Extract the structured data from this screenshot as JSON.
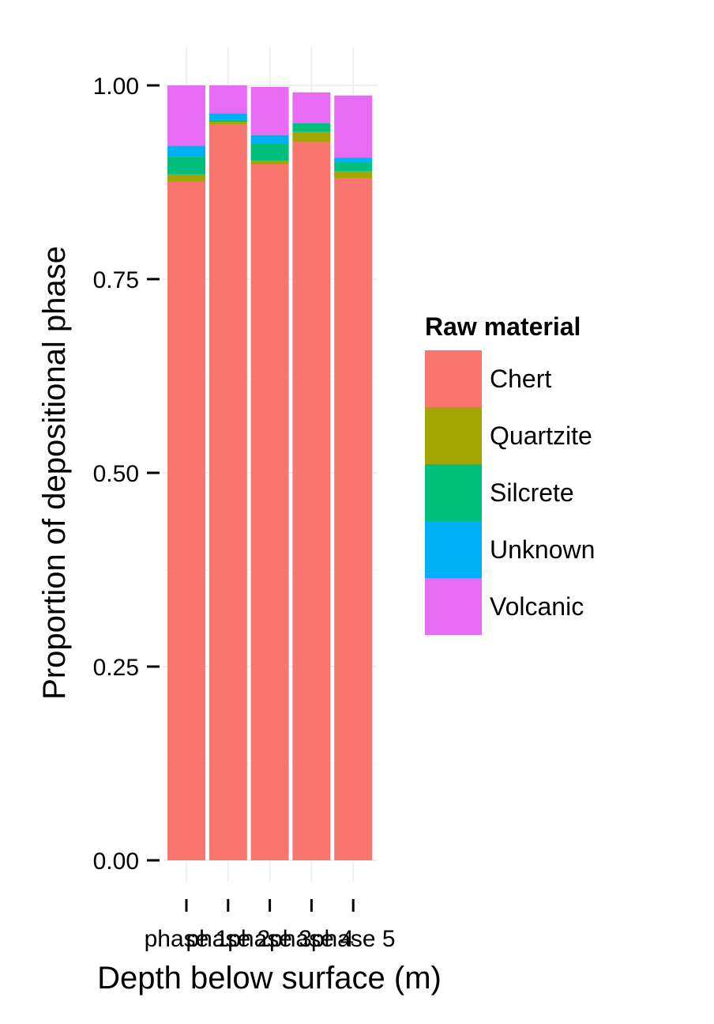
{
  "chart_data": {
    "type": "bar",
    "stacked": true,
    "xlabel": "Depth below surface (m)",
    "ylabel": "Proportion of depositional phase",
    "ylim": [
      0,
      1
    ],
    "yticks": [
      "0.00",
      "0.25",
      "0.50",
      "0.75",
      "1.00"
    ],
    "grid": true,
    "categories": [
      "phase 1",
      "phase 2",
      "phase 3",
      "phase 4",
      "phase 5"
    ],
    "legend": {
      "title": "Raw material",
      "position": "right"
    },
    "series": [
      {
        "name": "Chert",
        "color": "#F8766D",
        "values": [
          0.876,
          0.95,
          0.898,
          0.927,
          0.88
        ]
      },
      {
        "name": "Quartzite",
        "color": "#A3A500",
        "values": [
          0.009,
          0.003,
          0.005,
          0.013,
          0.009
        ]
      },
      {
        "name": "Silcrete",
        "color": "#00BF7D",
        "values": [
          0.023,
          0.003,
          0.022,
          0.011,
          0.012
        ]
      },
      {
        "name": "Unknown",
        "color": "#00B0F6",
        "values": [
          0.014,
          0.008,
          0.011,
          0.0,
          0.006
        ]
      },
      {
        "name": "Volcanic",
        "color": "#E76BF3",
        "values": [
          0.078,
          0.036,
          0.062,
          0.04,
          0.08
        ]
      }
    ]
  }
}
